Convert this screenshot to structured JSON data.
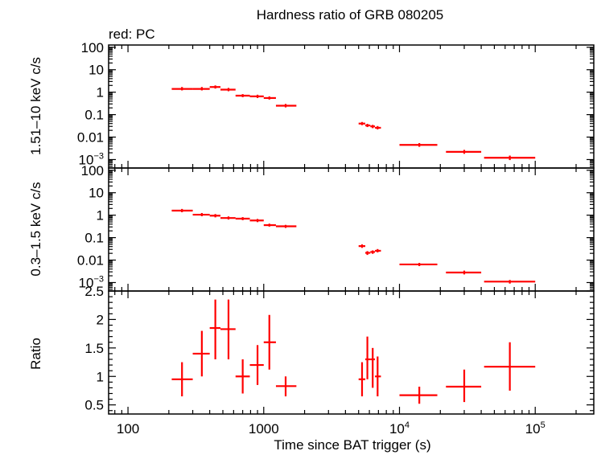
{
  "chart_data": {
    "title": "Hardness ratio of GRB 080205",
    "subtitle": "red: PC",
    "xlabel": "Time since BAT trigger (s)",
    "x_scale": "log",
    "xlim": [
      72,
      270000
    ],
    "x_ticks": [
      {
        "value": 100,
        "label": "100",
        "exp": ""
      },
      {
        "value": 1000,
        "label": "1000",
        "exp": ""
      },
      {
        "value": 10000,
        "label": "10",
        "exp": "4"
      },
      {
        "value": 100000,
        "label": "10",
        "exp": "5"
      }
    ],
    "series_color": "#ff0000",
    "panels": [
      {
        "type": "scatter",
        "ylabel": "1.51–10 keV c/s",
        "y_scale": "log",
        "ylim": [
          0.00042,
          126
        ],
        "y_ticks": [
          {
            "value": 100,
            "label": "100",
            "exp": ""
          },
          {
            "value": 10,
            "label": "10",
            "exp": ""
          },
          {
            "value": 1,
            "label": "1",
            "exp": ""
          },
          {
            "value": 0.1,
            "label": "0.1",
            "exp": ""
          },
          {
            "value": 0.01,
            "label": "0.01",
            "exp": ""
          },
          {
            "value": 0.001,
            "label": "10",
            "exp": "−3"
          }
        ],
        "points": [
          {
            "x": 250,
            "xlo": 210,
            "xhi": 300,
            "y": 1.4,
            "ylo": 1.2,
            "yhi": 1.7
          },
          {
            "x": 350,
            "xlo": 300,
            "xhi": 400,
            "y": 1.4,
            "ylo": 1.2,
            "yhi": 1.7
          },
          {
            "x": 440,
            "xlo": 400,
            "xhi": 480,
            "y": 1.7,
            "ylo": 1.45,
            "yhi": 2.0
          },
          {
            "x": 550,
            "xlo": 480,
            "xhi": 620,
            "y": 1.3,
            "ylo": 1.1,
            "yhi": 1.55
          },
          {
            "x": 700,
            "xlo": 620,
            "xhi": 790,
            "y": 0.7,
            "ylo": 0.6,
            "yhi": 0.82
          },
          {
            "x": 900,
            "xlo": 790,
            "xhi": 1000,
            "y": 0.65,
            "ylo": 0.55,
            "yhi": 0.77
          },
          {
            "x": 1100,
            "xlo": 1000,
            "xhi": 1230,
            "y": 0.55,
            "ylo": 0.47,
            "yhi": 0.65
          },
          {
            "x": 1450,
            "xlo": 1230,
            "xhi": 1740,
            "y": 0.25,
            "ylo": 0.21,
            "yhi": 0.3
          },
          {
            "x": 5300,
            "xlo": 5000,
            "xhi": 5600,
            "y": 0.04,
            "ylo": 0.034,
            "yhi": 0.047
          },
          {
            "x": 5800,
            "xlo": 5600,
            "xhi": 6100,
            "y": 0.033,
            "ylo": 0.028,
            "yhi": 0.039
          },
          {
            "x": 6350,
            "xlo": 6100,
            "xhi": 6600,
            "y": 0.03,
            "ylo": 0.025,
            "yhi": 0.035
          },
          {
            "x": 6900,
            "xlo": 6600,
            "xhi": 7300,
            "y": 0.026,
            "ylo": 0.022,
            "yhi": 0.031
          },
          {
            "x": 14000,
            "xlo": 10000,
            "xhi": 19000,
            "y": 0.0045,
            "ylo": 0.0037,
            "yhi": 0.0054
          },
          {
            "x": 30000,
            "xlo": 22000,
            "xhi": 40000,
            "y": 0.0022,
            "ylo": 0.0018,
            "yhi": 0.0027
          },
          {
            "x": 65000,
            "xlo": 42000,
            "xhi": 100000,
            "y": 0.0012,
            "ylo": 0.00095,
            "yhi": 0.0015
          }
        ]
      },
      {
        "type": "scatter",
        "ylabel": "0.3–1.5 keV c/s",
        "y_scale": "log",
        "ylim": [
          0.00042,
          126
        ],
        "y_ticks": [
          {
            "value": 100,
            "label": "100",
            "exp": ""
          },
          {
            "value": 10,
            "label": "10",
            "exp": ""
          },
          {
            "value": 1,
            "label": "1",
            "exp": ""
          },
          {
            "value": 0.1,
            "label": "0.1",
            "exp": ""
          },
          {
            "value": 0.01,
            "label": "0.01",
            "exp": ""
          },
          {
            "value": 0.001,
            "label": "10",
            "exp": "−3"
          }
        ],
        "points": [
          {
            "x": 250,
            "xlo": 210,
            "xhi": 300,
            "y": 1.6,
            "ylo": 1.35,
            "yhi": 1.9
          },
          {
            "x": 350,
            "xlo": 300,
            "xhi": 400,
            "y": 1.05,
            "ylo": 0.9,
            "yhi": 1.25
          },
          {
            "x": 440,
            "xlo": 400,
            "xhi": 480,
            "y": 0.95,
            "ylo": 0.8,
            "yhi": 1.12
          },
          {
            "x": 550,
            "xlo": 480,
            "xhi": 620,
            "y": 0.75,
            "ylo": 0.64,
            "yhi": 0.88
          },
          {
            "x": 700,
            "xlo": 620,
            "xhi": 790,
            "y": 0.7,
            "ylo": 0.6,
            "yhi": 0.82
          },
          {
            "x": 900,
            "xlo": 790,
            "xhi": 1000,
            "y": 0.58,
            "ylo": 0.49,
            "yhi": 0.68
          },
          {
            "x": 1100,
            "xlo": 1000,
            "xhi": 1230,
            "y": 0.36,
            "ylo": 0.31,
            "yhi": 0.42
          },
          {
            "x": 1450,
            "xlo": 1230,
            "xhi": 1740,
            "y": 0.32,
            "ylo": 0.27,
            "yhi": 0.37
          },
          {
            "x": 5300,
            "xlo": 5000,
            "xhi": 5600,
            "y": 0.042,
            "ylo": 0.035,
            "yhi": 0.05
          },
          {
            "x": 5800,
            "xlo": 5600,
            "xhi": 6100,
            "y": 0.021,
            "ylo": 0.017,
            "yhi": 0.025
          },
          {
            "x": 6350,
            "xlo": 6100,
            "xhi": 6600,
            "y": 0.023,
            "ylo": 0.019,
            "yhi": 0.027
          },
          {
            "x": 6900,
            "xlo": 6600,
            "xhi": 7300,
            "y": 0.026,
            "ylo": 0.022,
            "yhi": 0.031
          },
          {
            "x": 14000,
            "xlo": 10000,
            "xhi": 19000,
            "y": 0.0064,
            "ylo": 0.0054,
            "yhi": 0.0075
          },
          {
            "x": 30000,
            "xlo": 22000,
            "xhi": 40000,
            "y": 0.0028,
            "ylo": 0.0023,
            "yhi": 0.0034
          },
          {
            "x": 65000,
            "xlo": 42000,
            "xhi": 100000,
            "y": 0.0011,
            "ylo": 0.0009,
            "yhi": 0.0013
          }
        ]
      },
      {
        "type": "scatter",
        "ylabel": "Ratio",
        "y_scale": "linear",
        "ylim": [
          0.34,
          2.5
        ],
        "y_ticks": [
          {
            "value": 2.5,
            "label": "2.5",
            "exp": ""
          },
          {
            "value": 2,
            "label": "2",
            "exp": ""
          },
          {
            "value": 1.5,
            "label": "1.5",
            "exp": ""
          },
          {
            "value": 1,
            "label": "1",
            "exp": ""
          },
          {
            "value": 0.5,
            "label": "0.5",
            "exp": ""
          }
        ],
        "y_minor": [
          2.4,
          2.3,
          2.2,
          2.1,
          1.9,
          1.8,
          1.7,
          1.6,
          1.4,
          1.3,
          1.2,
          1.1,
          0.9,
          0.8,
          0.7,
          0.6,
          0.4
        ],
        "points": [
          {
            "x": 250,
            "xlo": 210,
            "xhi": 300,
            "y": 0.95,
            "ylo": 0.65,
            "yhi": 1.25
          },
          {
            "x": 350,
            "xlo": 300,
            "xhi": 400,
            "y": 1.4,
            "ylo": 1.0,
            "yhi": 1.8
          },
          {
            "x": 440,
            "xlo": 400,
            "xhi": 480,
            "y": 1.85,
            "ylo": 1.3,
            "yhi": 2.35
          },
          {
            "x": 550,
            "xlo": 480,
            "xhi": 620,
            "y": 1.83,
            "ylo": 1.3,
            "yhi": 2.35
          },
          {
            "x": 700,
            "xlo": 620,
            "xhi": 790,
            "y": 1.0,
            "ylo": 0.7,
            "yhi": 1.3
          },
          {
            "x": 900,
            "xlo": 790,
            "xhi": 1000,
            "y": 1.2,
            "ylo": 0.85,
            "yhi": 1.55
          },
          {
            "x": 1100,
            "xlo": 1000,
            "xhi": 1230,
            "y": 1.6,
            "ylo": 1.12,
            "yhi": 2.08
          },
          {
            "x": 1450,
            "xlo": 1230,
            "xhi": 1740,
            "y": 0.83,
            "ylo": 0.65,
            "yhi": 1.0
          },
          {
            "x": 5300,
            "xlo": 5000,
            "xhi": 5600,
            "y": 0.95,
            "ylo": 0.65,
            "yhi": 1.25
          },
          {
            "x": 5800,
            "xlo": 5600,
            "xhi": 6100,
            "y": 1.3,
            "ylo": 0.95,
            "yhi": 1.7
          },
          {
            "x": 6350,
            "xlo": 6100,
            "xhi": 6600,
            "y": 1.3,
            "ylo": 0.8,
            "yhi": 1.5
          },
          {
            "x": 6900,
            "xlo": 6600,
            "xhi": 7300,
            "y": 1.0,
            "ylo": 0.65,
            "yhi": 1.35
          },
          {
            "x": 14000,
            "xlo": 10000,
            "xhi": 19000,
            "y": 0.67,
            "ylo": 0.52,
            "yhi": 0.82
          },
          {
            "x": 30000,
            "xlo": 22000,
            "xhi": 40000,
            "y": 0.82,
            "ylo": 0.55,
            "yhi": 1.12
          },
          {
            "x": 65000,
            "xlo": 42000,
            "xhi": 100000,
            "y": 1.17,
            "ylo": 0.75,
            "yhi": 1.6
          }
        ]
      }
    ]
  }
}
